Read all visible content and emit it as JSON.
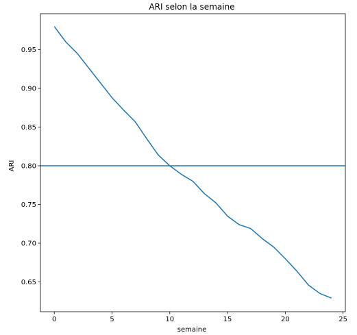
{
  "chart_data": {
    "type": "line",
    "title": "ARI selon la semaine",
    "xlabel": "semaine",
    "ylabel": "ARI",
    "xlim": [
      -1.2,
      25.2
    ],
    "ylim": [
      0.6115,
      0.9965
    ],
    "xticks": [
      0,
      5,
      10,
      15,
      20,
      25
    ],
    "yticks": [
      0.65,
      0.7,
      0.75,
      0.8,
      0.85,
      0.9,
      0.95
    ],
    "xtick_labels": [
      "0",
      "5",
      "10",
      "15",
      "20",
      "25"
    ],
    "ytick_labels": [
      "0.65",
      "0.70",
      "0.75",
      "0.80",
      "0.85",
      "0.90",
      "0.95"
    ],
    "grid": false,
    "series": [
      {
        "x": [
          0,
          1,
          2,
          3,
          4,
          5,
          6,
          7,
          8,
          9,
          10,
          11,
          12,
          13,
          14,
          15,
          16,
          17,
          18,
          19,
          20,
          21,
          22,
          23,
          24
        ],
        "values": [
          0.98,
          0.96,
          0.945,
          0.926,
          0.907,
          0.888,
          0.872,
          0.857,
          0.835,
          0.814,
          0.8,
          0.789,
          0.78,
          0.764,
          0.752,
          0.735,
          0.724,
          0.719,
          0.706,
          0.695,
          0.68,
          0.664,
          0.646,
          0.635,
          0.629
        ],
        "color": "#1f77b4"
      }
    ],
    "hlines": [
      {
        "y": 0.8,
        "color": "#1f77b4"
      }
    ]
  }
}
